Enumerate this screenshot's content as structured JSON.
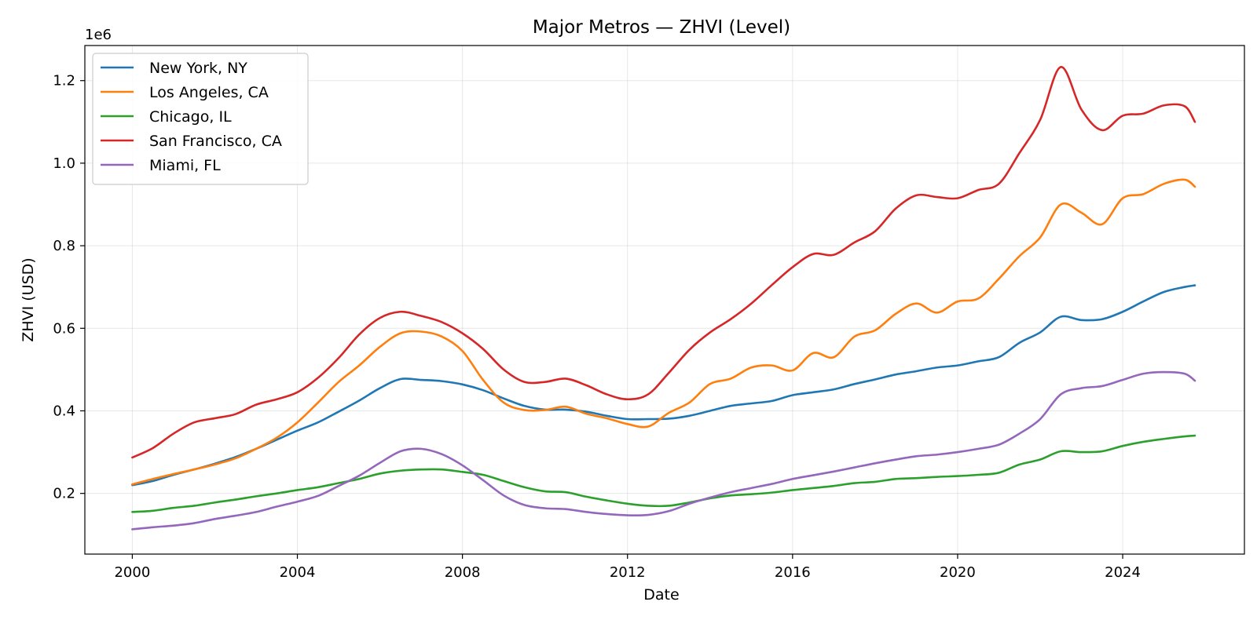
{
  "chart_data": {
    "type": "line",
    "title": "Major Metros — ZHVI (Level)",
    "xlabel": "Date",
    "ylabel": "ZHVI (USD)",
    "y_offset_text": "1e6",
    "xlim": [
      1998.85,
      2026.95
    ],
    "ylim": [
      53000,
      1285000
    ],
    "x_ticks": [
      2000,
      2004,
      2008,
      2012,
      2016,
      2020,
      2024
    ],
    "y_ticks": [
      200000,
      400000,
      600000,
      800000,
      1000000,
      1200000
    ],
    "y_tick_labels": [
      "0.2",
      "0.4",
      "0.6",
      "0.8",
      "1.0",
      "1.2"
    ],
    "grid": true,
    "legend_position": "top-left",
    "x": [
      2000.0,
      2000.5,
      2001.0,
      2001.5,
      2002.0,
      2002.5,
      2003.0,
      2003.5,
      2004.0,
      2004.5,
      2005.0,
      2005.5,
      2006.0,
      2006.5,
      2007.0,
      2007.5,
      2008.0,
      2008.5,
      2009.0,
      2009.5,
      2010.0,
      2010.5,
      2011.0,
      2011.5,
      2012.0,
      2012.5,
      2013.0,
      2013.5,
      2014.0,
      2014.5,
      2015.0,
      2015.5,
      2016.0,
      2016.5,
      2017.0,
      2017.5,
      2018.0,
      2018.5,
      2019.0,
      2019.5,
      2020.0,
      2020.5,
      2021.0,
      2021.5,
      2022.0,
      2022.5,
      2023.0,
      2023.5,
      2024.0,
      2024.5,
      2025.0,
      2025.5,
      2025.75
    ],
    "series": [
      {
        "name": "New York, NY",
        "color": "#1f77b4",
        "values": [
          220000,
          230000,
          245000,
          258000,
          272000,
          288000,
          308000,
          330000,
          352000,
          372000,
          398000,
          425000,
          455000,
          477000,
          475000,
          472000,
          464000,
          450000,
          430000,
          412000,
          403000,
          403000,
          398000,
          388000,
          380000,
          380000,
          381000,
          388000,
          400000,
          412000,
          418000,
          424000,
          438000,
          445000,
          452000,
          465000,
          476000,
          488000,
          496000,
          505000,
          510000,
          520000,
          530000,
          565000,
          590000,
          628000,
          620000,
          622000,
          640000,
          665000,
          688000,
          700000,
          704000
        ]
      },
      {
        "name": "Los Angeles, CA",
        "color": "#ff7f0e",
        "values": [
          222000,
          235000,
          247000,
          258000,
          270000,
          285000,
          308000,
          335000,
          372000,
          420000,
          470000,
          510000,
          555000,
          588000,
          592000,
          580000,
          545000,
          475000,
          420000,
          402000,
          402000,
          410000,
          393000,
          382000,
          368000,
          362000,
          395000,
          420000,
          465000,
          478000,
          505000,
          510000,
          498000,
          540000,
          530000,
          580000,
          595000,
          635000,
          660000,
          638000,
          665000,
          672000,
          720000,
          775000,
          820000,
          900000,
          880000,
          852000,
          915000,
          925000,
          950000,
          960000,
          943000
        ]
      },
      {
        "name": "Chicago, IL",
        "color": "#2ca02c",
        "values": [
          155000,
          158000,
          165000,
          170000,
          178000,
          185000,
          193000,
          200000,
          208000,
          215000,
          225000,
          235000,
          248000,
          255000,
          258000,
          258000,
          252000,
          245000,
          230000,
          215000,
          205000,
          203000,
          192000,
          183000,
          175000,
          170000,
          170000,
          178000,
          188000,
          195000,
          198000,
          202000,
          208000,
          213000,
          218000,
          225000,
          228000,
          235000,
          237000,
          240000,
          242000,
          245000,
          250000,
          270000,
          282000,
          302000,
          300000,
          302000,
          315000,
          325000,
          332000,
          338000,
          340000
        ]
      },
      {
        "name": "San Francisco, CA",
        "color": "#d62728",
        "values": [
          287000,
          310000,
          345000,
          372000,
          382000,
          392000,
          415000,
          428000,
          445000,
          480000,
          528000,
          585000,
          625000,
          640000,
          630000,
          615000,
          588000,
          550000,
          500000,
          470000,
          470000,
          478000,
          462000,
          440000,
          428000,
          440000,
          492000,
          548000,
          590000,
          622000,
          660000,
          705000,
          748000,
          780000,
          778000,
          808000,
          835000,
          890000,
          922000,
          918000,
          915000,
          935000,
          950000,
          1025000,
          1105000,
          1233000,
          1130000,
          1080000,
          1115000,
          1120000,
          1140000,
          1138000,
          1100000
        ]
      },
      {
        "name": "Miami, FL",
        "color": "#9467bd",
        "values": [
          113000,
          118000,
          122000,
          128000,
          138000,
          146000,
          155000,
          168000,
          180000,
          194000,
          218000,
          243000,
          274000,
          302000,
          308000,
          295000,
          268000,
          232000,
          195000,
          172000,
          164000,
          162000,
          155000,
          150000,
          147000,
          148000,
          157000,
          175000,
          190000,
          203000,
          213000,
          223000,
          235000,
          244000,
          253000,
          263000,
          273000,
          282000,
          290000,
          294000,
          300000,
          308000,
          318000,
          345000,
          380000,
          440000,
          455000,
          460000,
          475000,
          490000,
          494000,
          490000,
          473000
        ]
      }
    ]
  }
}
